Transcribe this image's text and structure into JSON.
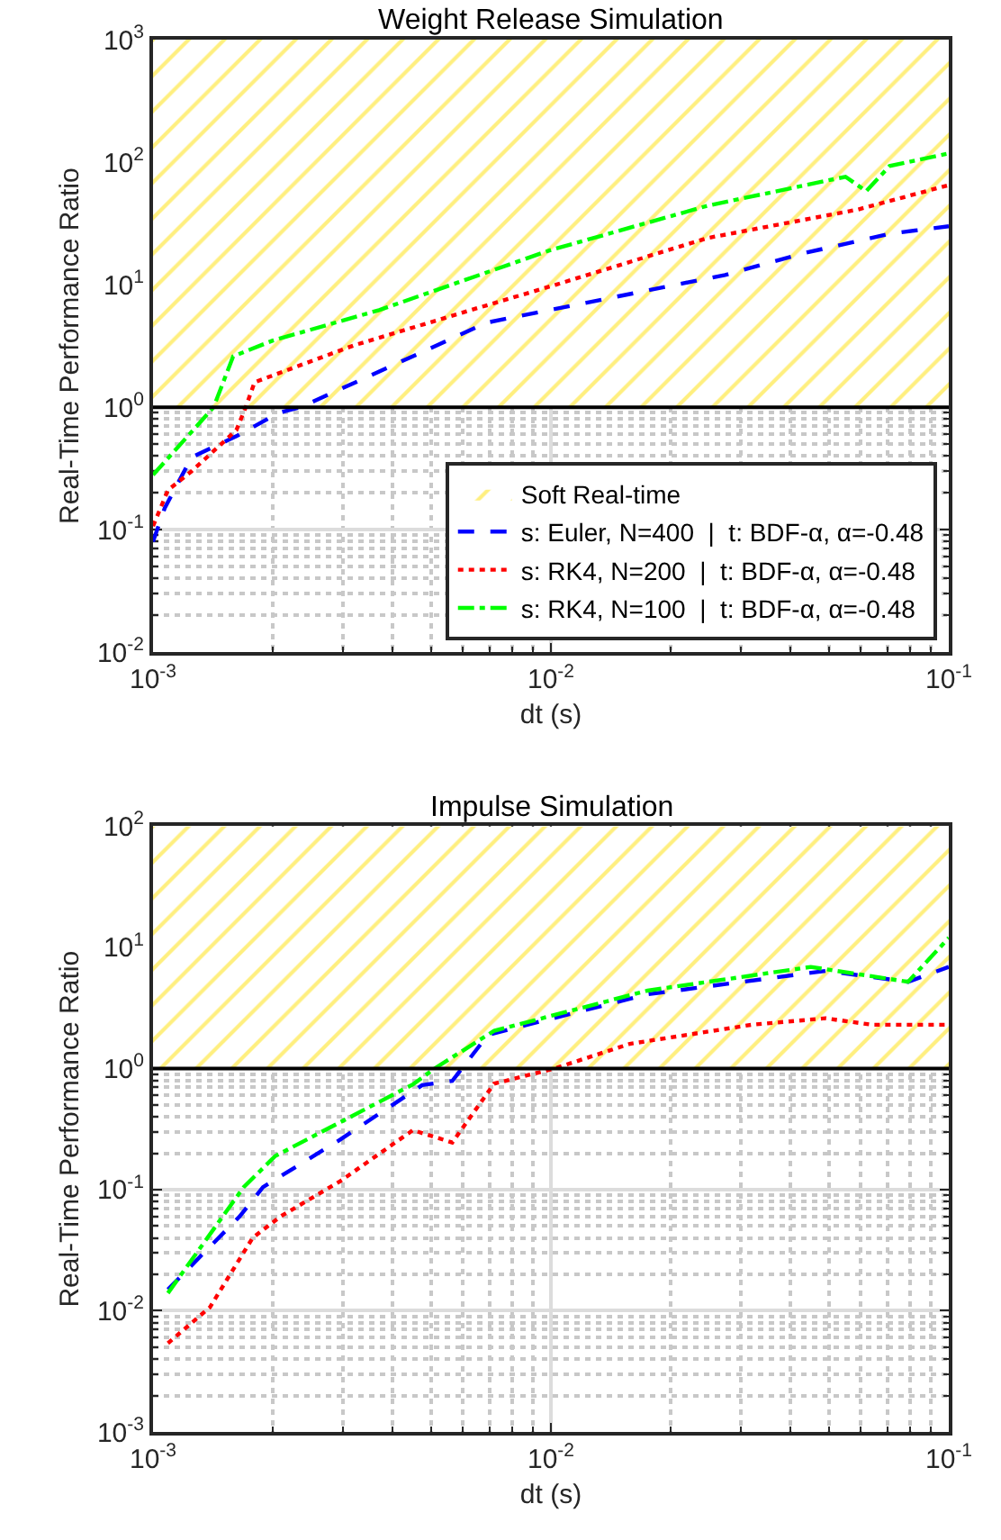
{
  "chart_data": [
    {
      "type": "line",
      "title": "Weight Release Simulation",
      "xlabel": "dt (s)",
      "ylabel": "Real-Time Performance Ratio",
      "log": "xy",
      "grid": true,
      "legend": "bottom right",
      "marker": "none",
      "xlim": [
        0.001,
        0.1
      ],
      "ylim": [
        0.01,
        1000
      ],
      "xticks": [
        {
          "value": 0.001,
          "label": "10$^{-3}$"
        },
        {
          "value": 0.01,
          "label": "10$^{-2}$"
        },
        {
          "value": 0.1,
          "label": "10$^{-1}$"
        }
      ],
      "yticks": [
        {
          "value": 0.01,
          "label": "10$^{-2}$"
        },
        {
          "value": 0.1,
          "label": "10$^{-1}$"
        },
        {
          "value": 1,
          "label": "10$^{0}$"
        },
        {
          "value": 10,
          "label": "10$^{1}$"
        },
        {
          "value": 100,
          "label": "10$^{2}$"
        },
        {
          "value": 1000,
          "label": "10$^{3}$"
        }
      ],
      "bands": [
        {
          "axis": "y",
          "from": 1,
          "to": 1000,
          "label": "Soft Real-time",
          "color": "#ffe000"
        }
      ],
      "ref_lines": [
        {
          "axis": "y",
          "value": 1,
          "color": "#000000"
        }
      ],
      "series": [
        {
          "name": "s: Euler, N=400  |  t: BDF-α, α=-0.48",
          "color": "#0000ff",
          "line_style": "dashed",
          "x": [
            0.001,
            0.00107,
            0.00125,
            0.00162,
            0.00207,
            0.00235,
            0.0069,
            0.0274,
            0.043,
            0.071,
            0.1
          ],
          "values": [
            0.08,
            0.15,
            0.39,
            0.58,
            0.9,
            1,
            4.9,
            12,
            18,
            26,
            30
          ]
        },
        {
          "name": "s: RK4, N=200  |  t: BDF-α, α=-0.48",
          "color": "#ff0000",
          "line_style": "dotted",
          "x": [
            0.001,
            0.00109,
            0.00125,
            0.00162,
            0.00171,
            0.0018,
            0.0032,
            0.0065,
            0.0103,
            0.0247,
            0.059,
            0.1
          ],
          "values": [
            0.107,
            0.21,
            0.3,
            0.65,
            1,
            1.6,
            3.2,
            6.4,
            10,
            24,
            41,
            65
          ]
        },
        {
          "name": "s: RK4, N=100  |  t: BDF-α, α=-0.48",
          "color": "#00ff00",
          "line_style": "dashdot",
          "x": [
            0.001,
            0.00142,
            0.00159,
            0.002,
            0.0037,
            0.0099,
            0.0247,
            0.055,
            0.062,
            0.071,
            0.1
          ],
          "values": [
            0.28,
            1,
            2.6,
            3.5,
            6.2,
            19,
            44,
            76,
            58,
            93,
            118
          ]
        }
      ]
    },
    {
      "type": "line",
      "title": "Impulse Simulation",
      "xlabel": "dt (s)",
      "ylabel": "Real-Time Performance Ratio",
      "log": "xy",
      "grid": true,
      "legend": false,
      "marker": "none",
      "xlim": [
        0.001,
        0.1
      ],
      "ylim": [
        0.001,
        100
      ],
      "xticks": [
        {
          "value": 0.001,
          "label": "10$^{-3}$"
        },
        {
          "value": 0.01,
          "label": "10$^{-2}$"
        },
        {
          "value": 0.1,
          "label": "10$^{-1}$"
        }
      ],
      "yticks": [
        {
          "value": 0.001,
          "label": "10$^{-3}$"
        },
        {
          "value": 0.01,
          "label": "10$^{-2}$"
        },
        {
          "value": 0.1,
          "label": "10$^{-1}$"
        },
        {
          "value": 1,
          "label": "10$^{0}$"
        },
        {
          "value": 10,
          "label": "10$^{1}$"
        },
        {
          "value": 100,
          "label": "10$^{2}$"
        }
      ],
      "bands": [
        {
          "axis": "y",
          "from": 1,
          "to": 100,
          "color": "#ffe000"
        }
      ],
      "ref_lines": [
        {
          "axis": "y",
          "value": 1,
          "color": "#000000"
        }
      ],
      "series": [
        {
          "color": "#0000ff",
          "line_style": "dashed",
          "x": [
            0.00109,
            0.00165,
            0.00189,
            0.00296,
            0.00475,
            0.00565,
            0.00695,
            0.0175,
            0.049,
            0.079,
            0.1
          ],
          "values": [
            0.015,
            0.06,
            0.105,
            0.26,
            0.73,
            0.79,
            1.9,
            4.1,
            6.4,
            5.2,
            6.9
          ]
        },
        {
          "color": "#ff0000",
          "line_style": "dotted",
          "x": [
            0.00109,
            0.00139,
            0.00178,
            0.00209,
            0.00296,
            0.0045,
            0.00565,
            0.0072,
            0.0102,
            0.0158,
            0.032,
            0.049,
            0.064,
            0.1
          ],
          "values": [
            0.0054,
            0.0107,
            0.04,
            0.06,
            0.118,
            0.31,
            0.245,
            0.75,
            1,
            1.6,
            2.3,
            2.6,
            2.3,
            2.3
          ]
        },
        {
          "color": "#00ff00",
          "line_style": "dashdot",
          "x": [
            0.00109,
            0.00169,
            0.00203,
            0.0045,
            0.0051,
            0.0072,
            0.0175,
            0.045,
            0.079,
            0.1
          ],
          "values": [
            0.014,
            0.105,
            0.19,
            0.74,
            1,
            2.05,
            4.4,
            6.9,
            5.2,
            12
          ]
        }
      ]
    }
  ]
}
